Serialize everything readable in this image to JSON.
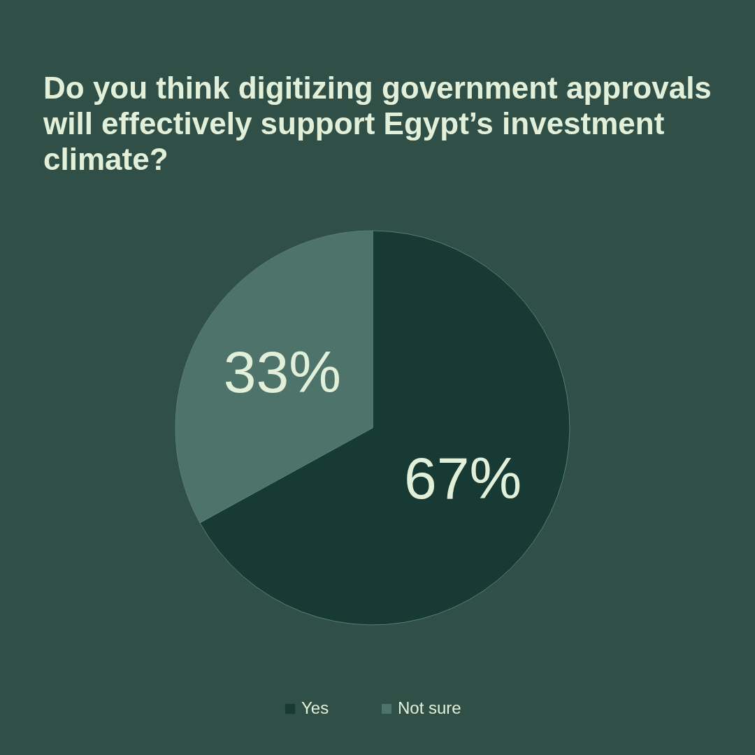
{
  "chart_data": {
    "type": "pie",
    "title": "Do you think digitizing government approvals will effectively support Egypt’s investment climate?",
    "categories": [
      "Yes",
      "Not sure"
    ],
    "values": [
      67,
      33
    ],
    "colors": [
      "#173b34",
      "#4e736a"
    ],
    "value_labels": [
      "67%",
      "33%"
    ],
    "legend": "bottom"
  }
}
